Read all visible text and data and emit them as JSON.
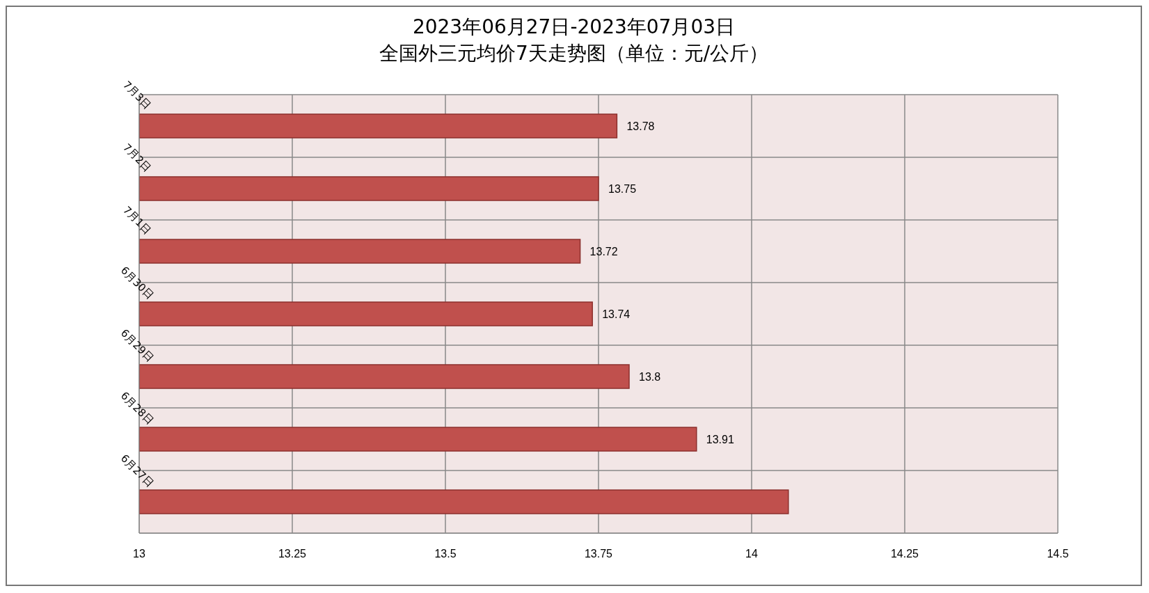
{
  "chart_data": {
    "type": "bar",
    "orientation": "horizontal",
    "title": "2023年06月27日-2023年07月03日",
    "subtitle": "全国外三元均价7天走势图（单位：元/公斤）",
    "categories": [
      "7月3日",
      "7月2日",
      "7月1日",
      "6月30日",
      "6月29日",
      "6月28日",
      "6月27日"
    ],
    "values": [
      13.78,
      13.75,
      13.72,
      13.74,
      13.8,
      13.91,
      14.06
    ],
    "value_labels": [
      "13.78",
      "13.75",
      "13.72",
      "13.74",
      "13.8",
      "13.91",
      null
    ],
    "color": "#c0504d",
    "xlim": [
      13,
      14.5
    ],
    "xticks": [
      13,
      {
        "value": 13.25,
        "label": "13.25"
      },
      {
        "value": 13.5,
        "label": "13.5"
      },
      {
        "value": 13.75,
        "label": "13.75"
      },
      14,
      {
        "value": 14.25,
        "label": "14.25"
      },
      {
        "value": 14.5,
        "label": "14.5"
      }
    ],
    "grid": true
  }
}
